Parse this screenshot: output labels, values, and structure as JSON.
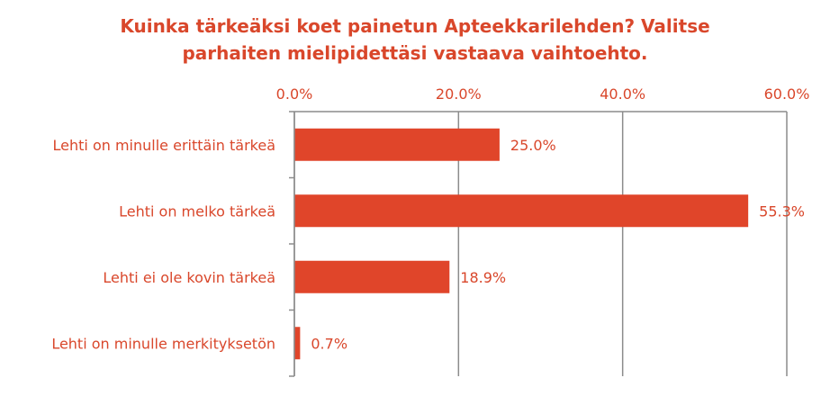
{
  "title_lines": [
    "Kuinka tärkeäksi koet painetun Apteekkarilehden? Valitse",
    "parhaiten mielipidettäsi vastaava vaihtoehto."
  ],
  "chart_data": {
    "type": "bar",
    "orientation": "horizontal",
    "title": "Kuinka tärkeäksi koet painetun Apteekkarilehden? Valitse parhaiten mielipidettäsi vastaava vaihtoehto.",
    "categories": [
      "Lehti on minulle erittäin tärkeä",
      "Lehti on melko tärkeä",
      "Lehti ei ole kovin tärkeä",
      "Lehti on minulle merkityksetön"
    ],
    "values": [
      25.0,
      55.3,
      18.9,
      0.7
    ],
    "data_labels": [
      "25.0%",
      "55.3%",
      "18.9%",
      "0.7%"
    ],
    "xlim": [
      0,
      60
    ],
    "x_ticks": [
      0,
      20,
      40,
      60
    ],
    "x_tick_labels": [
      "0.0%",
      "20.0%",
      "40.0%",
      "60.0%"
    ],
    "axis_position": "top",
    "gridlines": true,
    "legend": "none",
    "bar_color": "#e0452a",
    "text_color": "#d9472b",
    "grid_color": "#8c8c8c"
  }
}
